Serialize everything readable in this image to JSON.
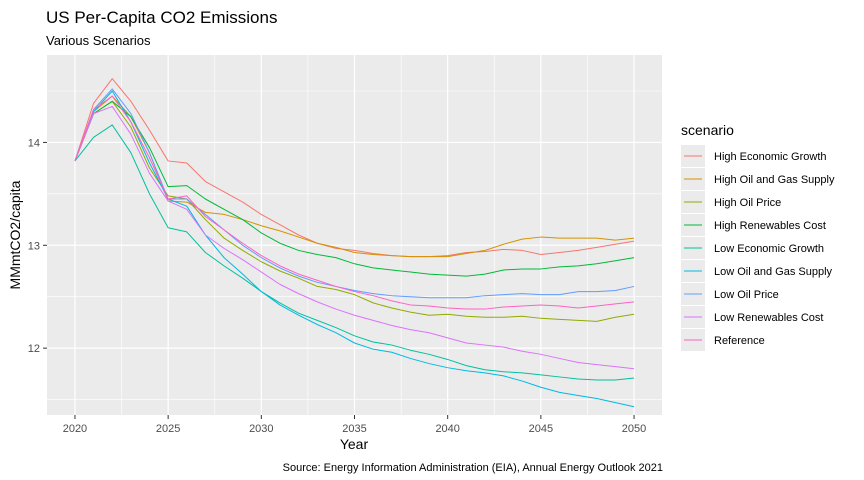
{
  "chart_data": {
    "type": "line",
    "title": "US Per-Capita CO2 Emissions",
    "subtitle": "Various Scenarios",
    "xlabel": "Year",
    "ylabel": "MMmtCO2/capita",
    "caption": "Source: Energy Information Administration (EIA), Annual Energy Outlook 2021",
    "legend_title": "scenario",
    "legend_position": "right",
    "grid": true,
    "xlim": [
      2018.5,
      2051.5
    ],
    "ylim": [
      11.35,
      14.85
    ],
    "x_ticks": [
      2020,
      2025,
      2030,
      2035,
      2040,
      2045,
      2050
    ],
    "y_ticks": [
      12,
      13,
      14
    ],
    "x": [
      2020,
      2021,
      2022,
      2023,
      2024,
      2025,
      2026,
      2027,
      2028,
      2029,
      2030,
      2031,
      2032,
      2033,
      2034,
      2035,
      2036,
      2037,
      2038,
      2039,
      2040,
      2041,
      2042,
      2043,
      2044,
      2045,
      2046,
      2047,
      2048,
      2049,
      2050
    ],
    "series": [
      {
        "name": "High Economic Growth",
        "color": "#F8766D",
        "values": [
          13.82,
          14.38,
          14.62,
          14.4,
          14.12,
          13.82,
          13.8,
          13.62,
          13.52,
          13.42,
          13.3,
          13.2,
          13.1,
          13.02,
          12.97,
          12.95,
          12.92,
          12.9,
          12.89,
          12.89,
          12.9,
          12.93,
          12.94,
          12.96,
          12.95,
          12.91,
          12.93,
          12.95,
          12.98,
          13.01,
          13.04
        ]
      },
      {
        "name": "High Oil and Gas Supply",
        "color": "#D39200",
        "values": [
          13.82,
          14.3,
          14.45,
          14.25,
          13.9,
          13.43,
          13.42,
          13.32,
          13.3,
          13.25,
          13.19,
          13.14,
          13.08,
          13.02,
          12.98,
          12.93,
          12.91,
          12.9,
          12.89,
          12.89,
          12.89,
          12.92,
          12.95,
          13.01,
          13.06,
          13.08,
          13.07,
          13.07,
          13.07,
          13.05,
          13.07
        ]
      },
      {
        "name": "High Oil Price",
        "color": "#93AA00",
        "values": [
          13.82,
          14.28,
          14.4,
          14.15,
          13.75,
          13.48,
          13.45,
          13.25,
          13.07,
          12.95,
          12.84,
          12.75,
          12.68,
          12.6,
          12.57,
          12.52,
          12.44,
          12.39,
          12.35,
          12.32,
          12.33,
          12.31,
          12.3,
          12.3,
          12.31,
          12.29,
          12.28,
          12.27,
          12.26,
          12.3,
          12.33
        ]
      },
      {
        "name": "High Renewables Cost",
        "color": "#00BA38",
        "values": [
          13.82,
          14.28,
          14.4,
          14.25,
          13.95,
          13.57,
          13.58,
          13.45,
          13.35,
          13.25,
          13.12,
          13.02,
          12.95,
          12.91,
          12.88,
          12.82,
          12.78,
          12.76,
          12.74,
          12.72,
          12.71,
          12.7,
          12.72,
          12.76,
          12.77,
          12.77,
          12.79,
          12.8,
          12.82,
          12.85,
          12.88
        ]
      },
      {
        "name": "Low Economic Growth",
        "color": "#00C19F",
        "values": [
          13.82,
          14.05,
          14.17,
          13.9,
          13.5,
          13.17,
          13.13,
          12.93,
          12.8,
          12.68,
          12.55,
          12.44,
          12.34,
          12.27,
          12.2,
          12.12,
          12.06,
          12.03,
          11.98,
          11.94,
          11.89,
          11.83,
          11.79,
          11.77,
          11.76,
          11.74,
          11.72,
          11.7,
          11.69,
          11.69,
          11.71
        ]
      },
      {
        "name": "Low Oil and Gas Supply",
        "color": "#00B9E3",
        "values": [
          13.82,
          14.3,
          14.5,
          14.2,
          13.8,
          13.45,
          13.38,
          13.1,
          12.88,
          12.72,
          12.55,
          12.42,
          12.32,
          12.23,
          12.15,
          12.05,
          11.99,
          11.96,
          11.9,
          11.85,
          11.81,
          11.78,
          11.76,
          11.73,
          11.68,
          11.62,
          11.57,
          11.54,
          11.51,
          11.47,
          11.43
        ]
      },
      {
        "name": "Low Oil Price",
        "color": "#619CFF",
        "values": [
          13.82,
          14.32,
          14.52,
          14.28,
          13.9,
          13.45,
          13.45,
          13.3,
          13.15,
          13.0,
          12.88,
          12.78,
          12.7,
          12.64,
          12.6,
          12.56,
          12.53,
          12.51,
          12.5,
          12.49,
          12.49,
          12.49,
          12.51,
          12.52,
          12.53,
          12.52,
          12.52,
          12.55,
          12.55,
          12.56,
          12.6
        ]
      },
      {
        "name": "Low Renewables Cost",
        "color": "#DB72FB",
        "values": [
          13.82,
          14.28,
          14.35,
          14.08,
          13.7,
          13.43,
          13.35,
          13.1,
          12.97,
          12.86,
          12.74,
          12.62,
          12.53,
          12.45,
          12.38,
          12.32,
          12.27,
          12.22,
          12.18,
          12.15,
          12.1,
          12.05,
          12.03,
          12.01,
          11.97,
          11.94,
          11.9,
          11.86,
          11.84,
          11.82,
          11.8
        ]
      },
      {
        "name": "Reference",
        "color": "#FF61C3",
        "values": [
          13.82,
          14.32,
          14.45,
          14.2,
          13.85,
          13.45,
          13.48,
          13.28,
          13.15,
          13.02,
          12.9,
          12.8,
          12.72,
          12.66,
          12.6,
          12.55,
          12.51,
          12.46,
          12.42,
          12.41,
          12.39,
          12.38,
          12.38,
          12.4,
          12.41,
          12.42,
          12.41,
          12.39,
          12.41,
          12.43,
          12.45
        ]
      }
    ]
  }
}
